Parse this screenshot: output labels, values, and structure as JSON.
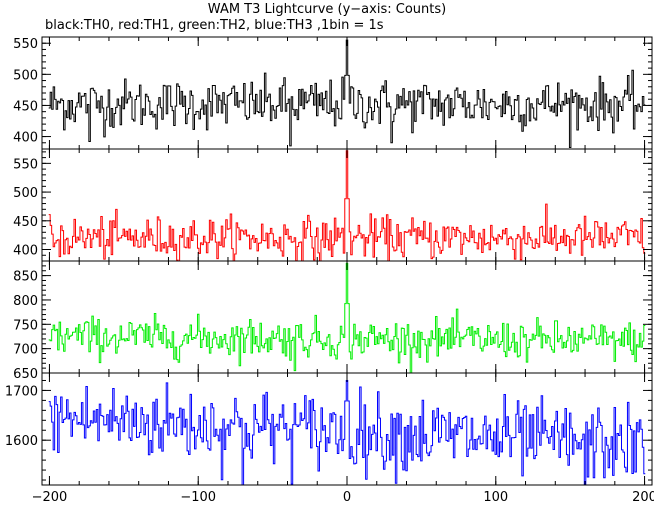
{
  "chart_data": {
    "type": "line",
    "title": "WAM T3 Lightcurve (y−axis: Counts)",
    "subtitle": "black:TH0, red:TH1, green:TH2, blue:TH3 ,1bin = 1s",
    "xlim": [
      -205,
      205
    ],
    "x_ticks": [
      -200,
      -100,
      0,
      100,
      200
    ],
    "x_tick_labels": [
      "−200",
      "−100",
      "0",
      "100",
      "200"
    ],
    "grid": false,
    "panels": [
      {
        "series": "TH0",
        "color": "#000000",
        "ylim": [
          380,
          560
        ],
        "y_ticks": [
          400,
          450,
          500,
          550
        ],
        "y_tick_labels": [
          "400",
          "450",
          "500",
          "550"
        ],
        "mean": 452,
        "noise_sd": 20,
        "trend": 0,
        "burst_peak": 555,
        "dips": [
          [
            -38,
            385
          ],
          [
            30,
            390
          ],
          [
            -173,
            392
          ]
        ]
      },
      {
        "series": "TH1",
        "color": "#ff0000",
        "ylim": [
          380,
          575
        ],
        "y_ticks": [
          400,
          450,
          500,
          550
        ],
        "y_tick_labels": [
          "400",
          "450",
          "500",
          "550"
        ],
        "mean": 420,
        "noise_sd": 18,
        "trend": 0,
        "burst_peak": 572,
        "dips": [
          [
            -18,
            380
          ]
        ]
      },
      {
        "series": "TH2",
        "color": "#00ee00",
        "ylim": [
          650,
          880
        ],
        "y_ticks": [
          650,
          700,
          750,
          800,
          850
        ],
        "y_tick_labels": [
          "650",
          "700",
          "750",
          "800",
          "850"
        ],
        "mean": 725,
        "noise_sd": 20,
        "trend": -10,
        "burst_peak": 875,
        "dips": [
          [
            -35,
            655
          ]
        ]
      },
      {
        "series": "TH3",
        "color": "#0000ff",
        "ylim": [
          1510,
          1735
        ],
        "y_ticks": [
          1600,
          1700
        ],
        "y_tick_labels": [
          "1600",
          "1700"
        ],
        "mean": 1645,
        "noise_sd": 38,
        "trend": -55,
        "burst_peak": 1720,
        "dips": [
          [
            -70,
            1510
          ],
          [
            160,
            1512
          ]
        ]
      }
    ]
  }
}
